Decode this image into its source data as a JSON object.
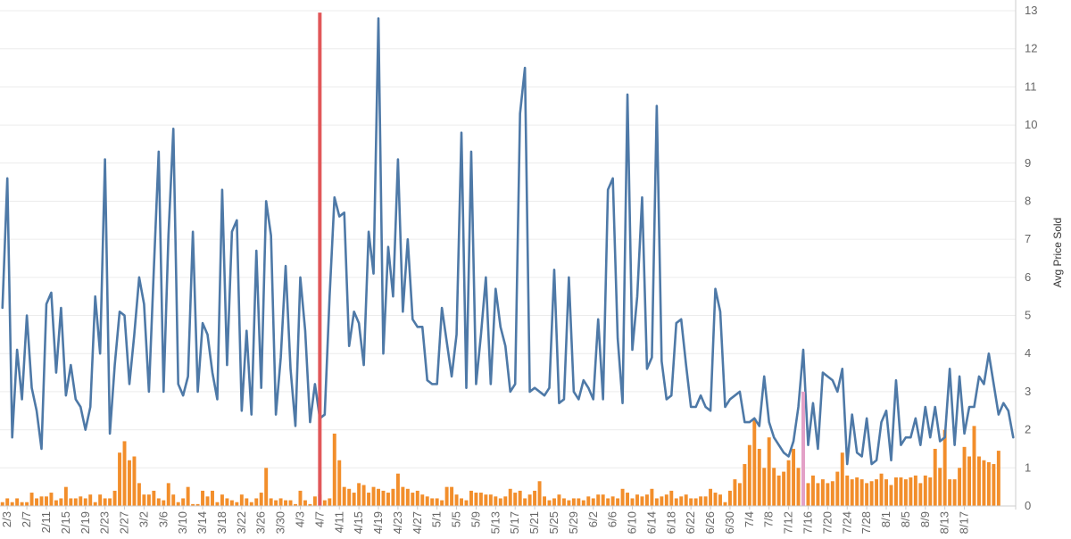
{
  "chart_data": {
    "type": "bar+line",
    "title": "",
    "ylabel": "Avg Price Sold",
    "ylim": [
      0,
      13
    ],
    "y_ticks": [
      0,
      1,
      2,
      3,
      4,
      5,
      6,
      7,
      8,
      9,
      10,
      11,
      12,
      13
    ],
    "grid": true,
    "x_tick_labels": [
      "2/3",
      "2/7",
      "2/11",
      "2/15",
      "2/19",
      "2/23",
      "2/27",
      "3/2",
      "3/6",
      "3/10",
      "3/14",
      "3/18",
      "3/22",
      "3/26",
      "3/30",
      "4/3",
      "4/7",
      "4/11",
      "4/15",
      "4/19",
      "4/23",
      "4/27",
      "5/1",
      "5/5",
      "5/9",
      "5/13",
      "5/17",
      "5/21",
      "5/25",
      "5/29",
      "6/2",
      "6/6",
      "6/10",
      "6/14",
      "6/18",
      "6/22",
      "6/26",
      "6/30",
      "7/4",
      "7/8",
      "7/12",
      "7/16",
      "7/20",
      "7/24",
      "7/28",
      "8/1",
      "8/5",
      "8/9",
      "8/13",
      "8/17"
    ],
    "series": [
      {
        "kind": "line",
        "values": [
          5.2,
          8.6,
          1.8,
          4.1,
          2.8,
          5.0,
          3.1,
          2.5,
          1.5,
          5.3,
          5.6,
          3.5,
          5.2,
          2.9,
          3.7,
          2.8,
          2.6,
          2.0,
          2.6,
          5.5,
          4.0,
          9.1,
          1.9,
          3.7,
          5.1,
          5.0,
          3.2,
          4.5,
          6.0,
          5.3,
          3.0,
          6.2,
          9.3,
          3.0,
          7.1,
          9.9,
          3.2,
          2.9,
          3.4,
          7.2,
          3.0,
          4.8,
          4.5,
          3.5,
          2.8,
          8.3,
          3.7,
          7.2,
          7.5,
          2.5,
          4.6,
          2.4,
          6.7,
          3.1,
          8.0,
          7.1,
          2.4,
          3.9,
          6.3,
          3.6,
          2.1,
          6.0,
          4.6,
          2.2,
          3.2,
          2.3,
          2.4,
          5.5,
          8.1,
          7.6,
          7.7,
          4.2,
          5.1,
          4.8,
          3.7,
          7.2,
          6.1,
          12.8,
          4.0,
          6.8,
          5.5,
          9.1,
          5.1,
          7.0,
          4.9,
          4.7,
          4.7,
          3.3,
          3.2,
          3.2,
          5.2,
          4.3,
          3.4,
          4.5,
          9.8,
          3.1,
          9.3,
          3.2,
          4.5,
          6.0,
          3.2,
          5.7,
          4.7,
          4.2,
          3.0,
          3.2,
          10.3,
          11.5,
          3.0,
          3.1,
          3.0,
          2.9,
          3.1,
          6.2,
          2.7,
          2.8,
          6.0,
          3.0,
          2.8,
          3.3,
          3.1,
          2.8,
          4.9,
          2.8,
          8.3,
          8.6,
          4.4,
          2.7,
          10.8,
          4.1,
          5.5,
          8.1,
          3.6,
          3.9,
          10.5,
          3.8,
          2.8,
          2.9,
          4.8,
          4.9,
          3.7,
          2.6,
          2.6,
          2.9,
          2.6,
          2.5,
          5.7,
          5.1,
          2.6,
          2.8,
          2.9,
          3.0,
          2.2,
          2.2,
          2.3,
          2.1,
          3.4,
          2.2,
          1.8,
          1.6,
          1.4,
          1.3,
          1.7,
          2.6,
          4.1,
          1.6,
          2.7,
          1.5,
          3.5,
          3.4,
          3.3,
          3.0,
          3.6,
          1.1,
          2.4,
          1.4,
          1.3,
          2.3,
          1.1,
          1.2,
          2.2,
          2.5,
          1.2,
          3.3,
          1.6,
          1.8,
          1.8,
          2.3,
          1.6,
          2.6,
          1.8,
          2.6,
          1.7,
          1.8,
          3.6,
          1.6,
          3.4,
          1.9,
          2.6,
          2.6,
          3.4,
          3.2,
          4.0,
          3.2,
          2.4,
          2.7,
          2.5,
          1.8
        ],
        "color": "#4e79a7"
      },
      {
        "kind": "bar",
        "values": [
          0.1,
          0.2,
          0.1,
          0.2,
          0.1,
          0.1,
          0.35,
          0.2,
          0.25,
          0.25,
          0.35,
          0.15,
          0.2,
          0.5,
          0.2,
          0.2,
          0.25,
          0.2,
          0.3,
          0.1,
          0.3,
          0.2,
          0.2,
          0.4,
          1.4,
          1.7,
          1.2,
          1.3,
          0.6,
          0.3,
          0.3,
          0.4,
          0.2,
          0.15,
          0.6,
          0.3,
          0.1,
          0.2,
          0.5,
          0.05,
          0.05,
          0.4,
          0.25,
          0.4,
          0.1,
          0.3,
          0.2,
          0.15,
          0.1,
          0.3,
          0.2,
          0.1,
          0.2,
          0.35,
          1.0,
          0.2,
          0.15,
          0.2,
          0.15,
          0.15,
          0.05,
          0.4,
          0.15,
          0.05,
          0.25,
          0.3,
          0.15,
          0.2,
          1.9,
          1.2,
          0.5,
          0.45,
          0.35,
          0.6,
          0.55,
          0.35,
          0.5,
          0.45,
          0.4,
          0.35,
          0.45,
          0.85,
          0.5,
          0.45,
          0.35,
          0.4,
          0.3,
          0.25,
          0.2,
          0.2,
          0.15,
          0.5,
          0.5,
          0.3,
          0.2,
          0.15,
          0.4,
          0.35,
          0.35,
          0.3,
          0.3,
          0.25,
          0.2,
          0.25,
          0.45,
          0.35,
          0.4,
          0.2,
          0.3,
          0.4,
          0.65,
          0.25,
          0.15,
          0.2,
          0.3,
          0.2,
          0.15,
          0.2,
          0.2,
          0.15,
          0.25,
          0.2,
          0.3,
          0.3,
          0.2,
          0.25,
          0.2,
          0.45,
          0.35,
          0.2,
          0.3,
          0.25,
          0.3,
          0.45,
          0.2,
          0.25,
          0.3,
          0.4,
          0.2,
          0.25,
          0.3,
          0.2,
          0.2,
          0.25,
          0.25,
          0.45,
          0.35,
          0.3,
          0.1,
          0.4,
          0.7,
          0.6,
          1.1,
          1.6,
          2.3,
          1.5,
          1.0,
          1.8,
          1.0,
          0.8,
          0.9,
          1.2,
          1.5,
          1.0,
          1.1,
          0.6,
          0.8,
          0.6,
          0.7,
          0.6,
          0.65,
          0.9,
          1.4,
          0.8,
          0.7,
          0.75,
          0.7,
          0.6,
          0.65,
          0.7,
          0.85,
          0.7,
          0.55,
          0.75,
          0.75,
          0.7,
          0.75,
          0.8,
          0.6,
          0.8,
          0.75,
          1.5,
          1.0,
          2.0,
          0.7,
          0.7,
          1.0,
          1.55,
          1.3,
          2.1,
          1.3,
          1.2,
          1.15,
          1.1,
          1.45
        ],
        "color": "#f28e2b"
      }
    ],
    "annotations": [
      {
        "kind": "vertical-marker",
        "x_index": 65,
        "from": 0,
        "to": 12.8,
        "color": "#e15759"
      },
      {
        "kind": "highlight-bar",
        "x_index": 164,
        "value": 3.0,
        "color": "#e3a1c7"
      }
    ]
  }
}
